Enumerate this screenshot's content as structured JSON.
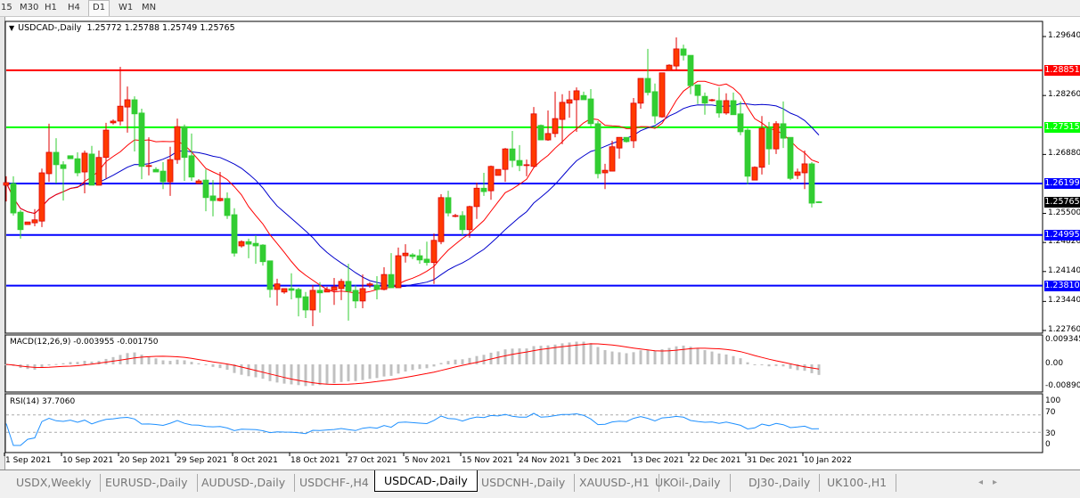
{
  "toolbar": {
    "timeframes": [
      "15",
      "M30",
      "H1",
      "H4",
      "D1",
      "W1",
      "MN"
    ],
    "active": "D1"
  },
  "chart": {
    "symbol_title": "USDCAD-,Daily",
    "ohlc_readout": "1.25772 1.25788 1.25749 1.25765",
    "colors": {
      "bull": "#ff3a00",
      "bull_border": "#e00000",
      "bear": "#32cd32",
      "ma_fast": "#ff0000",
      "ma_slow": "#0000cc",
      "macd_hist": "#c0c0c0",
      "macd_signal": "#ff0000",
      "rsi": "#1e90ff"
    },
    "current_price": "1.25765",
    "price_ticks": [
      "1.29640",
      "1.28260",
      "1.26880",
      "1.25500",
      "1.24820",
      "1.24140",
      "1.23440",
      "1.22760"
    ],
    "horizontal_lines": [
      {
        "label": "1.28851",
        "price": 1.28851,
        "color": "#ff0000"
      },
      {
        "label": "1.27515",
        "price": 1.27515,
        "color": "#00ff00"
      },
      {
        "label": "1.26199",
        "price": 1.26199,
        "color": "#0000ff"
      },
      {
        "label": "1.24995",
        "price": 1.24995,
        "color": "#0000ff"
      },
      {
        "label": "1.23810",
        "price": 1.2381,
        "color": "#0000ff"
      }
    ],
    "date_labels": [
      "1 Sep 2021",
      "10 Sep 2021",
      "20 Sep 2021",
      "29 Sep 2021",
      "8 Oct 2021",
      "18 Oct 2021",
      "27 Oct 2021",
      "5 Nov 2021",
      "15 Nov 2021",
      "24 Nov 2021",
      "3 Dec 2021",
      "13 Dec 2021",
      "22 Dec 2021",
      "31 Dec 2021",
      "10 Jan 2022"
    ],
    "candles_ohlc": [
      [
        1.2616,
        1.2637,
        1.2578,
        1.2622
      ],
      [
        1.262,
        1.2637,
        1.2545,
        1.2551
      ],
      [
        1.2553,
        1.2558,
        1.2491,
        1.2512
      ],
      [
        1.2524,
        1.253,
        1.2524,
        1.253
      ],
      [
        1.2528,
        1.256,
        1.252,
        1.2535
      ],
      [
        1.2532,
        1.2655,
        1.2518,
        1.2645
      ],
      [
        1.2643,
        1.276,
        1.2624,
        1.2693
      ],
      [
        1.2693,
        1.2726,
        1.262,
        1.2664
      ],
      [
        1.2664,
        1.2672,
        1.258,
        1.2655
      ],
      [
        1.2685,
        1.2685,
        1.2678,
        1.2678
      ],
      [
        1.2678,
        1.2693,
        1.2637,
        1.2645
      ],
      [
        1.2647,
        1.2697,
        1.2597,
        1.2691
      ],
      [
        1.2689,
        1.2708,
        1.2616,
        1.2616
      ],
      [
        1.2616,
        1.2697,
        1.2616,
        1.2681
      ],
      [
        1.2681,
        1.2762,
        1.2632,
        1.2745
      ],
      [
        1.2762,
        1.277,
        1.2758,
        1.2766
      ],
      [
        1.2766,
        1.2893,
        1.2756,
        1.2801
      ],
      [
        1.2799,
        1.2847,
        1.2739,
        1.2816
      ],
      [
        1.2816,
        1.2824,
        1.2695,
        1.2783
      ],
      [
        1.2785,
        1.2795,
        1.263,
        1.266
      ],
      [
        1.2662,
        1.2728,
        1.2639,
        1.2662
      ],
      [
        1.2653,
        1.2658,
        1.2647,
        1.2647
      ],
      [
        1.2649,
        1.267,
        1.2607,
        1.2624
      ],
      [
        1.2624,
        1.2706,
        1.2591,
        1.2676
      ],
      [
        1.2676,
        1.2772,
        1.2666,
        1.2753
      ],
      [
        1.2753,
        1.2758,
        1.2626,
        1.2681
      ],
      [
        1.2685,
        1.2737,
        1.2626,
        1.2635
      ],
      [
        1.262,
        1.263,
        1.262,
        1.2626
      ],
      [
        1.2628,
        1.2653,
        1.2555,
        1.2587
      ],
      [
        1.2591,
        1.2628,
        1.2543,
        1.258
      ],
      [
        1.258,
        1.2647,
        1.2578,
        1.2585
      ],
      [
        1.2585,
        1.2599,
        1.2537,
        1.2545
      ],
      [
        1.2547,
        1.2562,
        1.2449,
        1.2457
      ],
      [
        1.2474,
        1.2487,
        1.247,
        1.2484
      ],
      [
        1.2484,
        1.2491,
        1.2445,
        1.2478
      ],
      [
        1.248,
        1.2499,
        1.2432,
        1.2474
      ],
      [
        1.2476,
        1.2478,
        1.2428,
        1.2437
      ],
      [
        1.2439,
        1.2439,
        1.2353,
        1.2372
      ],
      [
        1.2372,
        1.2397,
        1.2334,
        1.2385
      ],
      [
        1.2366,
        1.2374,
        1.2362,
        1.2374
      ],
      [
        1.2374,
        1.241,
        1.2349,
        1.237
      ],
      [
        1.2372,
        1.2376,
        1.2309,
        1.2353
      ],
      [
        1.2355,
        1.2366,
        1.2305,
        1.2324
      ],
      [
        1.2324,
        1.2382,
        1.2286,
        1.237
      ],
      [
        1.237,
        1.2389,
        1.2318,
        1.2364
      ],
      [
        1.2366,
        1.2378,
        1.2366,
        1.2372
      ],
      [
        1.237,
        1.2399,
        1.2336,
        1.2378
      ],
      [
        1.2374,
        1.2397,
        1.2347,
        1.2391
      ],
      [
        1.2391,
        1.2432,
        1.2299,
        1.2368
      ],
      [
        1.237,
        1.2382,
        1.2328,
        1.2345
      ],
      [
        1.2345,
        1.2407,
        1.2328,
        1.2374
      ],
      [
        1.2382,
        1.2389,
        1.2376,
        1.2385
      ],
      [
        1.2382,
        1.2403,
        1.2349,
        1.2372
      ],
      [
        1.2372,
        1.2424,
        1.237,
        1.2407
      ],
      [
        1.2407,
        1.2457,
        1.2376,
        1.2376
      ],
      [
        1.2376,
        1.247,
        1.2376,
        1.2451
      ],
      [
        1.2451,
        1.2478,
        1.2435,
        1.2457
      ],
      [
        1.2453,
        1.2457,
        1.2443,
        1.2449
      ],
      [
        1.2451,
        1.2466,
        1.2432,
        1.2441
      ],
      [
        1.2443,
        1.2484,
        1.2428,
        1.2435
      ],
      [
        1.2435,
        1.2503,
        1.2385,
        1.2487
      ],
      [
        1.2484,
        1.2595,
        1.2478,
        1.2587
      ],
      [
        1.2587,
        1.2603,
        1.2543,
        1.2551
      ],
      [
        1.2543,
        1.2549,
        1.2541,
        1.2545
      ],
      [
        1.2545,
        1.2555,
        1.2499,
        1.2512
      ],
      [
        1.2512,
        1.2568,
        1.2493,
        1.2566
      ],
      [
        1.2566,
        1.2622,
        1.2537,
        1.2609
      ],
      [
        1.2609,
        1.2645,
        1.2591,
        1.2601
      ],
      [
        1.2603,
        1.2662,
        1.2582,
        1.266
      ],
      [
        1.2639,
        1.2653,
        1.2639,
        1.2653
      ],
      [
        1.2653,
        1.2703,
        1.2624,
        1.2701
      ],
      [
        1.2701,
        1.2743,
        1.2658,
        1.2674
      ],
      [
        1.2674,
        1.271,
        1.2649,
        1.2662
      ],
      [
        1.2662,
        1.2676,
        1.2637,
        1.2664
      ],
      [
        1.266,
        1.2799,
        1.2658,
        1.2783
      ],
      [
        1.2756,
        1.2758,
        1.2722,
        1.2722
      ],
      [
        1.2722,
        1.2791,
        1.272,
        1.2737
      ],
      [
        1.2737,
        1.2835,
        1.2728,
        1.2772
      ],
      [
        1.277,
        1.2829,
        1.2712,
        1.281
      ],
      [
        1.2808,
        1.2837,
        1.2774,
        1.2816
      ],
      [
        1.2816,
        1.2845,
        1.2741,
        1.2837
      ],
      [
        1.2826,
        1.2835,
        1.2816,
        1.2816
      ],
      [
        1.2818,
        1.2841,
        1.2753,
        1.276
      ],
      [
        1.276,
        1.2766,
        1.2632,
        1.2643
      ],
      [
        1.2645,
        1.2666,
        1.2607,
        1.2651
      ],
      [
        1.2649,
        1.272,
        1.2649,
        1.2706
      ],
      [
        1.2703,
        1.2728,
        1.2678,
        1.2728
      ],
      [
        1.2728,
        1.2728,
        1.2716,
        1.2718
      ],
      [
        1.272,
        1.282,
        1.2703,
        1.2808
      ],
      [
        1.2808,
        1.2866,
        1.2795,
        1.2866
      ],
      [
        1.2866,
        1.2935,
        1.2826,
        1.2833
      ],
      [
        1.2835,
        1.2854,
        1.276,
        1.2778
      ],
      [
        1.2776,
        1.2879,
        1.2774,
        1.2879
      ],
      [
        1.2885,
        1.2899,
        1.2885,
        1.2897
      ],
      [
        1.2895,
        1.2962,
        1.2885,
        1.2935
      ],
      [
        1.2935,
        1.2945,
        1.2908,
        1.292
      ],
      [
        1.292,
        1.292,
        1.2829,
        1.2849
      ],
      [
        1.2851,
        1.2851,
        1.2806,
        1.2826
      ],
      [
        1.2824,
        1.2833,
        1.2781,
        1.2808
      ],
      [
        1.2814,
        1.2818,
        1.2812,
        1.2816
      ],
      [
        1.2814,
        1.2845,
        1.2774,
        1.2785
      ],
      [
        1.2785,
        1.2831,
        1.2781,
        1.2814
      ],
      [
        1.2814,
        1.2833,
        1.2781,
        1.2781
      ],
      [
        1.2783,
        1.2812,
        1.2733,
        1.2741
      ],
      [
        1.2745,
        1.2749,
        1.2618,
        1.2637
      ],
      [
        1.2628,
        1.266,
        1.2628,
        1.2658
      ],
      [
        1.2658,
        1.2778,
        1.2641,
        1.2749
      ],
      [
        1.2749,
        1.2764,
        1.2664,
        1.2701
      ],
      [
        1.2701,
        1.2766,
        1.2689,
        1.276
      ],
      [
        1.276,
        1.2812,
        1.2703,
        1.2726
      ],
      [
        1.2728,
        1.2728,
        1.2628,
        1.2632
      ],
      [
        1.2639,
        1.2655,
        1.263,
        1.2647
      ],
      [
        1.2645,
        1.2697,
        1.2607,
        1.2666
      ],
      [
        1.2666,
        1.267,
        1.2564,
        1.2574
      ],
      [
        1.25772,
        1.25788,
        1.25749,
        1.25765
      ]
    ]
  },
  "macd": {
    "label": "MACD(12,26,9) -0.003955 -0.001750",
    "ticks": [
      "0.009345",
      "0.00",
      "-0.008902"
    ]
  },
  "rsi": {
    "label": "RSI(14) 37.7060",
    "ticks": [
      "100",
      "70",
      "30",
      "0"
    ]
  },
  "tabs": [
    {
      "label": "USDX,Weekly"
    },
    {
      "label": "EURUSD-,Daily"
    },
    {
      "label": "AUDUSD-,Daily"
    },
    {
      "label": "USDCHF-,H4"
    },
    {
      "label": "USDCAD-,Daily",
      "active": true
    },
    {
      "label": "USDCNH-,Daily"
    },
    {
      "label": "XAUUSD-,H1"
    },
    {
      "label": "UKOil-,Daily"
    },
    {
      "label": "DJ30-,Daily"
    },
    {
      "label": "UK100-,H1"
    }
  ],
  "tab_scroll": {
    "left": "◂",
    "right": "▸"
  }
}
